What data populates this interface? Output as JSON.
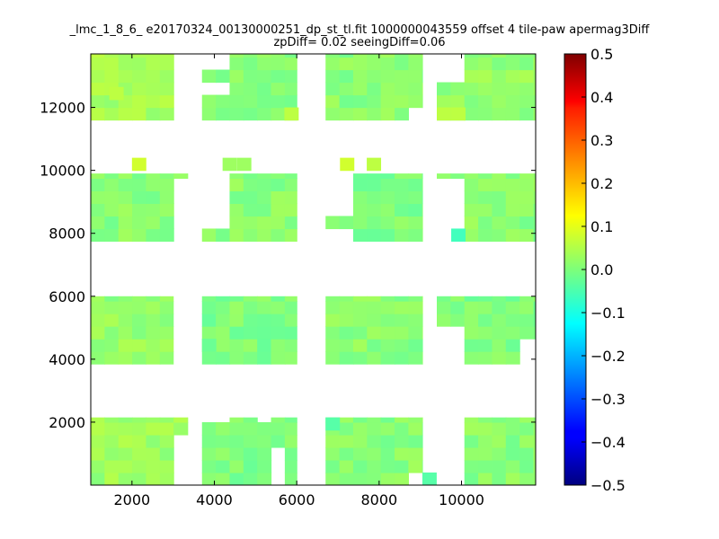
{
  "chart_data": {
    "type": "heatmap",
    "title": "_lmc_1_8_6_ e20170324_00130000251_dp_st_tl.fit 1000000043559 offset 4 tile-paw apermag3Diff",
    "subtitle": "zpDiff= 0.02 seeingDiff=0.06",
    "xlabel": "",
    "ylabel": "",
    "xlim": [
      1000,
      11800
    ],
    "ylim": [
      0,
      13700
    ],
    "x_ticks": [
      2000,
      4000,
      6000,
      8000,
      10000
    ],
    "y_ticks": [
      2000,
      4000,
      6000,
      8000,
      10000,
      12000
    ],
    "colormap": "jet",
    "colorbar": {
      "vmin": -0.5,
      "vmax": 0.5,
      "ticks": [
        "0.5",
        "0.4",
        "0.3",
        "0.2",
        "0.1",
        "0.0",
        "−0.1",
        "−0.2",
        "−0.3",
        "−0.4",
        "−0.5"
      ],
      "tick_values": [
        0.5,
        0.4,
        0.3,
        0.2,
        0.1,
        0.0,
        -0.1,
        -0.2,
        -0.3,
        -0.4,
        -0.5
      ]
    },
    "grid": false,
    "cell_size": [
      335,
      400
    ],
    "chips": [
      {
        "x0": 1000,
        "x1": 3350,
        "y0": 0,
        "y1": 2150,
        "mean": 0.03
      },
      {
        "x0": 3700,
        "x1": 6000,
        "y0": 0,
        "y1": 2150,
        "mean": 0.0
      },
      {
        "x0": 6700,
        "x1": 9050,
        "y0": 0,
        "y1": 2150,
        "mean": 0.01
      },
      {
        "x0": 9400,
        "x1": 11800,
        "y0": 0,
        "y1": 2150,
        "mean": 0.01
      },
      {
        "x0": 1000,
        "x1": 3000,
        "y0": 3850,
        "y1": 6000,
        "mean": 0.02
      },
      {
        "x0": 3700,
        "x1": 6000,
        "y0": 3850,
        "y1": 6000,
        "mean": 0.0
      },
      {
        "x0": 6700,
        "x1": 9050,
        "y0": 3850,
        "y1": 6000,
        "mean": 0.01
      },
      {
        "x0": 9400,
        "x1": 11800,
        "y0": 3850,
        "y1": 6000,
        "mean": 0.0
      },
      {
        "x0": 1000,
        "x1": 3350,
        "y0": 7750,
        "y1": 9900,
        "mean": 0.01
      },
      {
        "x0": 3700,
        "x1": 6000,
        "y0": 7750,
        "y1": 9900,
        "mean": 0.01
      },
      {
        "x0": 6700,
        "x1": 9050,
        "y0": 7750,
        "y1": 9900,
        "mean": 0.0
      },
      {
        "x0": 9400,
        "x1": 11800,
        "y0": 7750,
        "y1": 9900,
        "mean": 0.01
      },
      {
        "x0": 1000,
        "x1": 3350,
        "y0": 11600,
        "y1": 13700,
        "mean": 0.04
      },
      {
        "x0": 3700,
        "x1": 6000,
        "y0": 11600,
        "y1": 13700,
        "mean": 0.01
      },
      {
        "x0": 6700,
        "x1": 9050,
        "y0": 11600,
        "y1": 13700,
        "mean": 0.01
      },
      {
        "x0": 9400,
        "x1": 11800,
        "y0": 11600,
        "y1": 13700,
        "mean": 0.02
      }
    ],
    "gaps": [
      {
        "x0": 3000,
        "x1": 3350,
        "y0": 11600,
        "y1": 13700
      },
      {
        "x0": 3700,
        "x1": 4100,
        "y0": 12950,
        "y1": 13700
      },
      {
        "x0": 3700,
        "x1": 4100,
        "y0": 12300,
        "y1": 12650
      },
      {
        "x0": 8700,
        "x1": 9050,
        "y0": 11600,
        "y1": 12000
      },
      {
        "x0": 9400,
        "x1": 9750,
        "y0": 12450,
        "y1": 13700
      },
      {
        "x0": 1000,
        "x1": 1950,
        "y0": 9900,
        "y1": 10000
      },
      {
        "x0": 3000,
        "x1": 3350,
        "y0": 7750,
        "y1": 9450
      },
      {
        "x0": 3700,
        "x1": 4100,
        "y0": 8150,
        "y1": 9900
      },
      {
        "x0": 6700,
        "x1": 7050,
        "y0": 8550,
        "y1": 9900
      },
      {
        "x0": 6700,
        "x1": 7050,
        "y0": 7750,
        "y1": 8150
      },
      {
        "x0": 9400,
        "x1": 9750,
        "y0": 7750,
        "y1": 9450
      },
      {
        "x0": 3000,
        "x1": 3350,
        "y0": 3850,
        "y1": 6000
      },
      {
        "x0": 9400,
        "x1": 9750,
        "y0": 3850,
        "y1": 4700
      },
      {
        "x0": 11100,
        "x1": 11800,
        "y0": 3850,
        "y1": 4300
      },
      {
        "x0": 11500,
        "x1": 11800,
        "y0": 4300,
        "y1": 4650
      },
      {
        "x0": 3000,
        "x1": 3350,
        "y0": 0,
        "y1": 1550
      },
      {
        "x0": 3700,
        "x1": 4100,
        "y0": 1750,
        "y1": 2150
      },
      {
        "x0": 4750,
        "x1": 5100,
        "y0": 1750,
        "y1": 2150
      },
      {
        "x0": 5100,
        "x1": 5450,
        "y0": 0,
        "y1": 850
      },
      {
        "x0": 9050,
        "x1": 9750,
        "y0": 0,
        "y1": 2150
      },
      {
        "x0": 8700,
        "x1": 9050,
        "y0": 0,
        "y1": 300
      }
    ],
    "highlights": [
      {
        "x": 2000,
        "y": 10000,
        "value": 0.08
      },
      {
        "x": 4200,
        "y": 10000,
        "value": 0.03
      },
      {
        "x": 4550,
        "y": 10000,
        "value": 0.03
      },
      {
        "x": 7050,
        "y": 10000,
        "value": 0.08
      },
      {
        "x": 7700,
        "y": 10000,
        "value": 0.06
      },
      {
        "x": 1450,
        "y": 12250,
        "value": 0.06
      },
      {
        "x": 9400,
        "y": 11600,
        "value": 0.06
      },
      {
        "x": 9750,
        "y": 11600,
        "value": 0.06
      },
      {
        "x": 5700,
        "y": 11600,
        "value": 0.06
      },
      {
        "x": 9750,
        "y": 7750,
        "value": -0.06
      },
      {
        "x": 9050,
        "y": 0,
        "value": -0.04
      },
      {
        "x": 6700,
        "y": 1750,
        "value": -0.04
      },
      {
        "x": 3700,
        "y": 4250,
        "value": -0.02
      }
    ]
  }
}
